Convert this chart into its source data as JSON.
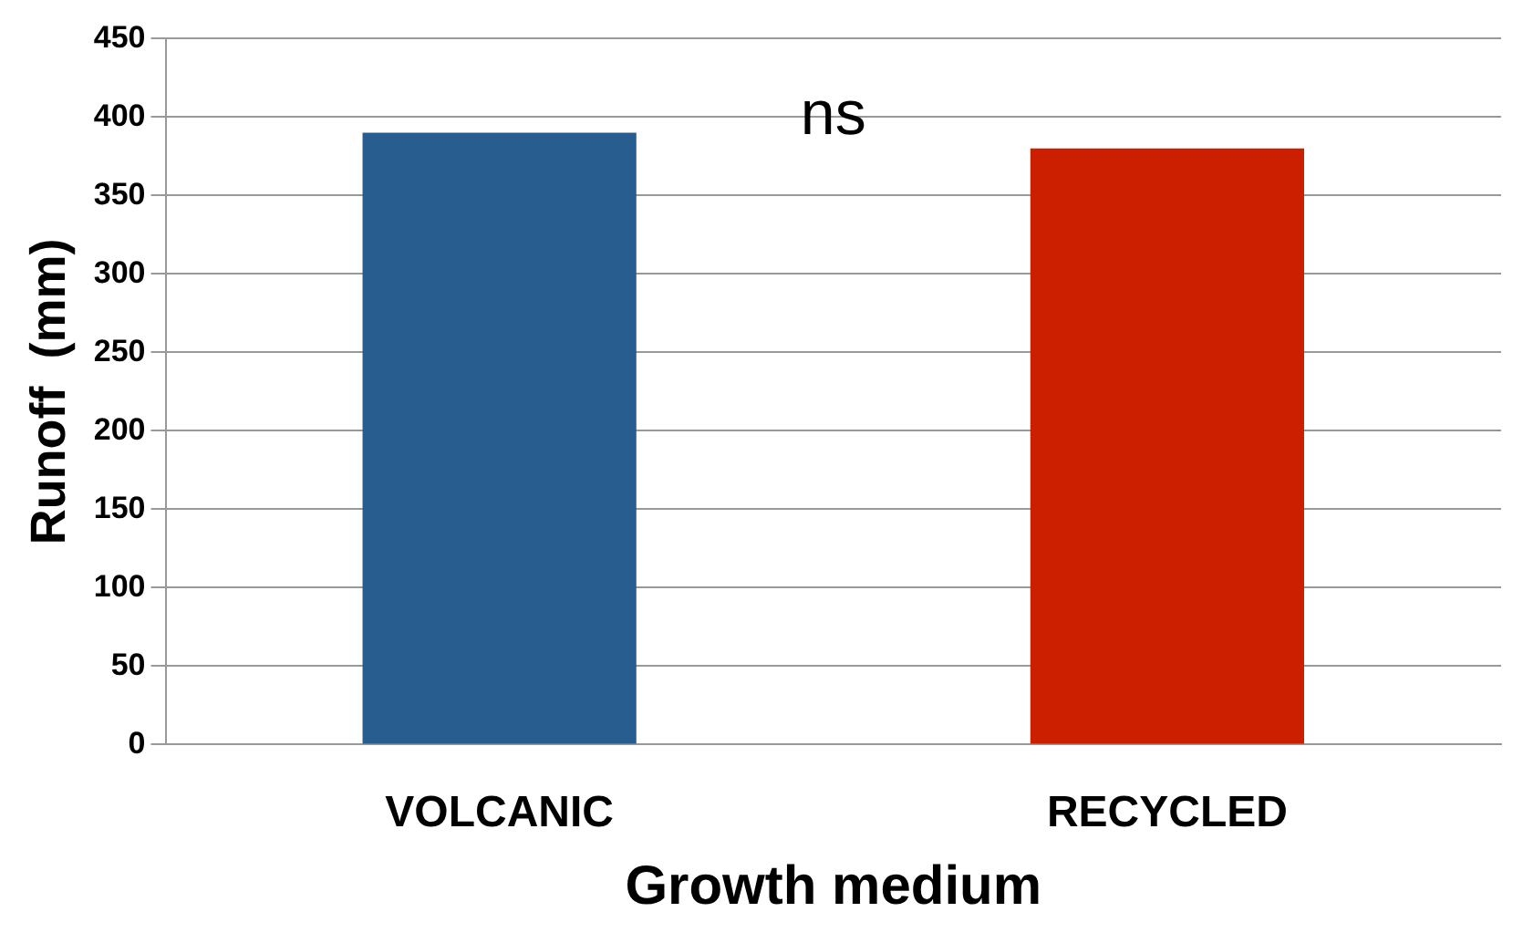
{
  "chart_data": {
    "type": "bar",
    "xlabel": "Growth medium",
    "ylabel": "Runoff  (mm)",
    "categories": [
      "VOLCANIC",
      "RECYCLED"
    ],
    "values": [
      390,
      380
    ],
    "colors": [
      "#285e8f",
      "#cc1f00"
    ],
    "ylim": [
      0,
      450
    ],
    "yticks": [
      0,
      50,
      100,
      150,
      200,
      250,
      300,
      350,
      400,
      450
    ],
    "grid": "y",
    "legend": false,
    "annotations": [
      "ns"
    ]
  }
}
